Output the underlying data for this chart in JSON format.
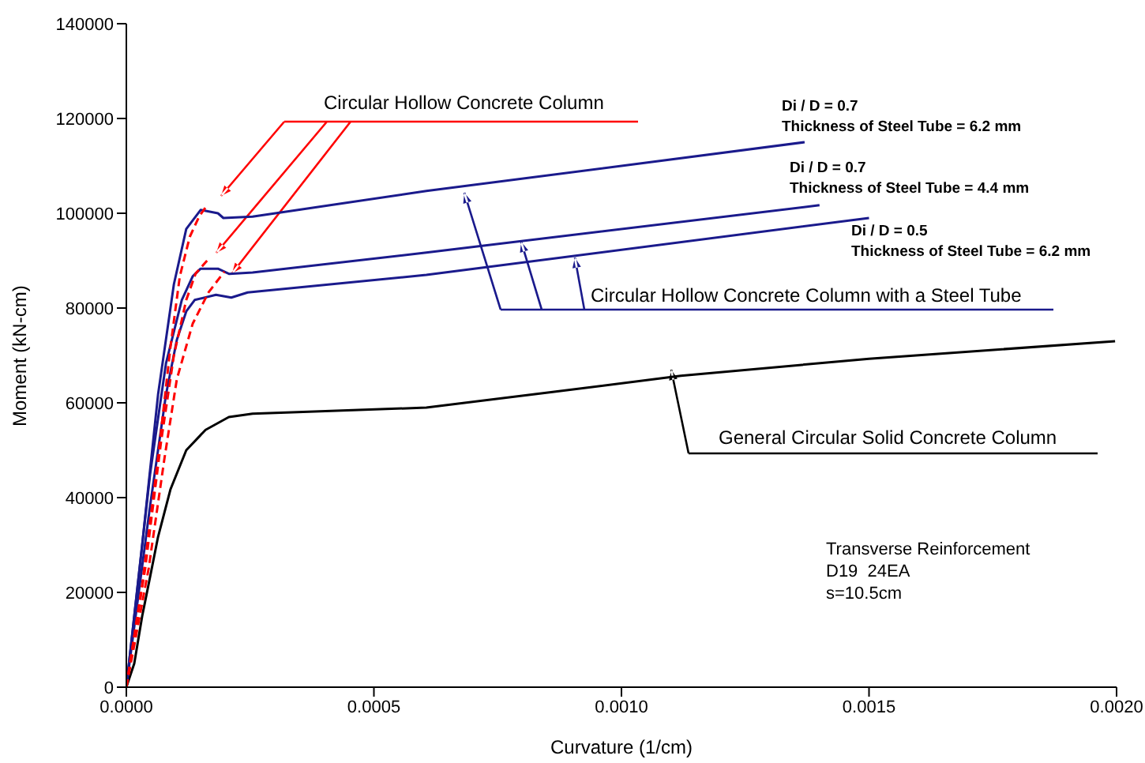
{
  "chart_data": {
    "type": "line",
    "xlabel": "Curvature (1/cm)",
    "ylabel": "Moment (kN-cm)",
    "xlim": [
      0,
      0.002
    ],
    "xticks": [
      {
        "value": 0,
        "label": "0.0000"
      },
      {
        "value": 0.0005,
        "label": "0.0005"
      },
      {
        "value": 0.001,
        "label": "0.0010"
      },
      {
        "value": 0.0015,
        "label": "0.0015"
      },
      {
        "value": 0.002,
        "label": "0.0020"
      }
    ],
    "ylim": [
      0,
      140000
    ],
    "yticks": [
      0,
      20000,
      40000,
      60000,
      80000,
      100000,
      120000,
      140000
    ],
    "grid": false,
    "legend": false,
    "marker": "none",
    "series": [
      {
        "color": "#000000",
        "line_style": "solid",
        "x": [
          0,
          1.6e-05,
          3.2e-05,
          4.8e-05,
          6.4e-05,
          8.9e-05,
          0.000121,
          0.00016,
          0.000207,
          0.000255,
          0.000335,
          0.000606,
          0.000861,
          0.00112,
          0.0015,
          0.001997
        ],
        "values": [
          0,
          5000,
          15000,
          23300,
          31700,
          41700,
          50000,
          54300,
          57000,
          57700,
          58000,
          59000,
          62300,
          65700,
          69300,
          73000
        ]
      },
      {
        "color": "#1a1a8c",
        "line_style": "solid",
        "x": [
          0,
          3.2e-05,
          6.4e-05,
          9.6e-05,
          0.000121,
          0.00015,
          0.000185,
          0.000196,
          0.000255,
          0.000606,
          0.00137
        ],
        "values": [
          0,
          30000,
          61700,
          85000,
          96700,
          100700,
          100000,
          99000,
          99300,
          104700,
          115000
        ]
      },
      {
        "color": "#1a1a8c",
        "line_style": "solid",
        "x": [
          0,
          4.8e-05,
          8e-05,
          0.000112,
          0.000134,
          0.00015,
          0.000185,
          0.000208,
          0.000255,
          0.000606,
          0.0014
        ],
        "values": [
          0,
          45000,
          68300,
          81700,
          86700,
          88300,
          88300,
          87200,
          87500,
          91700,
          101700
        ]
      },
      {
        "color": "#1a1a8c",
        "line_style": "solid",
        "x": [
          0,
          4.8e-05,
          8e-05,
          0.000102,
          0.000121,
          0.000138,
          0.000181,
          0.000212,
          0.000245,
          0.000606,
          0.0015
        ],
        "values": [
          0,
          38300,
          61700,
          73300,
          79300,
          81700,
          82800,
          82200,
          83300,
          87000,
          99000
        ]
      },
      {
        "color": "#ff0000",
        "line_style": "dashed",
        "x": [
          0,
          3.2e-05,
          6.4e-05,
          8.9e-05,
          0.000108,
          0.000128,
          0.000147,
          0.000163
        ],
        "values": [
          0,
          21700,
          48300,
          71700,
          86700,
          95000,
          99300,
          101700
        ]
      },
      {
        "color": "#ff0000",
        "line_style": "dashed",
        "x": [
          0,
          3.8e-05,
          7e-05,
          9.6e-05,
          0.000121,
          0.00014,
          0.000163
        ],
        "values": [
          0,
          25000,
          51700,
          70000,
          81700,
          87300,
          90000
        ]
      },
      {
        "color": "#ff0000",
        "line_style": "dashed",
        "x": [
          0,
          4.5e-05,
          7.7e-05,
          0.000102,
          0.000134,
          0.000166,
          0.000198
        ],
        "values": [
          0,
          25000,
          48300,
          65000,
          76700,
          83300,
          87700
        ]
      }
    ],
    "annotations": [
      "Circular Hollow Concrete Column",
      "Di / D = 0.7",
      "Thickness of Steel Tube = 6.2 mm",
      "Di / D = 0.7",
      "Thickness of Steel Tube = 4.4 mm",
      "Di / D = 0.5",
      "Thickness of Steel Tube = 6.2 mm",
      "Circular Hollow Concrete Column with a Steel Tube",
      "General Circular Solid Concrete Column",
      "Transverse Reinforcement",
      "D19  24EA",
      "s=10.5cm"
    ]
  }
}
